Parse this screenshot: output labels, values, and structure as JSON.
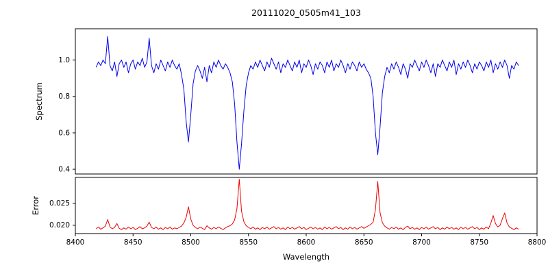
{
  "chart_data": {
    "type": "line",
    "title": "20111020_0505m41_103",
    "xlabel": "Wavelength",
    "xlim": [
      8400,
      8800
    ],
    "xticks": [
      8400,
      8450,
      8500,
      8550,
      8600,
      8650,
      8700,
      8750,
      8800
    ],
    "xtick_labels": [
      "8400",
      "8450",
      "8500",
      "8550",
      "8600",
      "8650",
      "8700",
      "8750",
      "8800"
    ],
    "grid": false,
    "legend": "none",
    "panels": [
      {
        "ylabel": "Spectrum",
        "ylim": [
          0.374,
          1.172
        ],
        "yticks": [
          0.4,
          0.6,
          0.8,
          1.0
        ],
        "ytick_labels": [
          "0.4",
          "0.6",
          "0.8",
          "1.0"
        ],
        "series": [
          {
            "name": "spectrum",
            "color": "#0000ee",
            "x_start": 8418,
            "x_step": 2,
            "values": [
              0.96,
              0.99,
              0.97,
              1.0,
              0.98,
              1.13,
              0.97,
              0.94,
              0.99,
              0.91,
              0.98,
              1.0,
              0.96,
              0.99,
              0.93,
              0.98,
              1.0,
              0.95,
              0.99,
              0.97,
              1.01,
              0.96,
              0.99,
              1.12,
              0.97,
              0.93,
              0.98,
              0.95,
              1.0,
              0.97,
              0.94,
              0.99,
              0.96,
              1.0,
              0.97,
              0.95,
              0.98,
              0.92,
              0.84,
              0.66,
              0.55,
              0.7,
              0.87,
              0.94,
              0.97,
              0.94,
              0.9,
              0.96,
              0.88,
              0.97,
              0.93,
              0.99,
              0.96,
              1.0,
              0.97,
              0.95,
              0.98,
              0.96,
              0.93,
              0.88,
              0.76,
              0.55,
              0.4,
              0.54,
              0.72,
              0.86,
              0.93,
              0.97,
              0.95,
              0.99,
              0.96,
              1.0,
              0.97,
              0.94,
              0.99,
              0.96,
              1.01,
              0.98,
              0.95,
              0.99,
              0.93,
              0.98,
              0.96,
              1.0,
              0.97,
              0.94,
              0.99,
              0.96,
              1.0,
              0.93,
              0.98,
              0.96,
              1.0,
              0.97,
              0.92,
              0.98,
              0.95,
              0.99,
              0.97,
              0.93,
              0.99,
              0.96,
              1.0,
              0.94,
              0.98,
              0.96,
              1.0,
              0.97,
              0.93,
              0.98,
              0.95,
              0.99,
              0.97,
              0.94,
              0.99,
              0.96,
              0.98,
              0.95,
              0.93,
              0.9,
              0.8,
              0.6,
              0.48,
              0.63,
              0.82,
              0.91,
              0.96,
              0.93,
              0.98,
              0.95,
              0.99,
              0.96,
              0.92,
              0.98,
              0.95,
              0.9,
              0.98,
              0.96,
              1.0,
              0.97,
              0.94,
              0.99,
              0.96,
              1.0,
              0.97,
              0.93,
              0.98,
              0.91,
              0.98,
              0.96,
              1.0,
              0.97,
              0.94,
              0.99,
              0.96,
              1.0,
              0.92,
              0.98,
              0.95,
              0.99,
              0.96,
              1.0,
              0.97,
              0.93,
              0.98,
              0.95,
              0.99,
              0.97,
              0.94,
              0.99,
              0.96,
              1.0,
              0.93,
              0.98,
              0.95,
              0.99,
              0.96,
              1.0,
              0.97,
              0.9,
              0.97,
              0.95,
              0.99,
              0.97
            ]
          }
        ]
      },
      {
        "ylabel": "Error",
        "ylim": [
          0.0181,
          0.0309
        ],
        "yticks": [
          0.02,
          0.025
        ],
        "ytick_labels": [
          "0.020",
          "0.025"
        ],
        "series": [
          {
            "name": "error",
            "color": "#ee0000",
            "x_start": 8418,
            "x_step": 2,
            "values": [
              0.0192,
              0.0196,
              0.0191,
              0.0194,
              0.0198,
              0.0213,
              0.0196,
              0.0192,
              0.0195,
              0.0204,
              0.0193,
              0.019,
              0.0194,
              0.0191,
              0.0196,
              0.0192,
              0.0195,
              0.019,
              0.0193,
              0.0197,
              0.0192,
              0.0194,
              0.0198,
              0.0207,
              0.0195,
              0.0192,
              0.0196,
              0.0191,
              0.0194,
              0.019,
              0.0195,
              0.0192,
              0.0196,
              0.0191,
              0.0194,
              0.0192,
              0.0195,
              0.0198,
              0.0205,
              0.0218,
              0.0242,
              0.0214,
              0.02,
              0.0195,
              0.0192,
              0.0196,
              0.0193,
              0.019,
              0.0199,
              0.0194,
              0.0191,
              0.0195,
              0.0192,
              0.0196,
              0.0193,
              0.019,
              0.0194,
              0.0197,
              0.0199,
              0.0203,
              0.0212,
              0.0238,
              0.0305,
              0.0232,
              0.0208,
              0.0199,
              0.0195,
              0.0192,
              0.0196,
              0.0191,
              0.0194,
              0.019,
              0.0195,
              0.0192,
              0.0196,
              0.0191,
              0.0194,
              0.0197,
              0.0192,
              0.0195,
              0.0191,
              0.0194,
              0.019,
              0.0196,
              0.0192,
              0.0195,
              0.0191,
              0.0194,
              0.0197,
              0.0192,
              0.0195,
              0.019,
              0.0193,
              0.0196,
              0.0192,
              0.0195,
              0.0191,
              0.0194,
              0.019,
              0.0196,
              0.0192,
              0.0195,
              0.0191,
              0.0194,
              0.0197,
              0.0192,
              0.0195,
              0.019,
              0.0194,
              0.0191,
              0.0196,
              0.0192,
              0.0195,
              0.0191,
              0.0194,
              0.0197,
              0.0193,
              0.0196,
              0.0199,
              0.0202,
              0.0207,
              0.0236,
              0.03,
              0.0229,
              0.0206,
              0.0198,
              0.0194,
              0.0191,
              0.0195,
              0.0192,
              0.0196,
              0.0191,
              0.0194,
              0.019,
              0.0195,
              0.0198,
              0.0192,
              0.0195,
              0.0191,
              0.0194,
              0.019,
              0.0195,
              0.0192,
              0.0196,
              0.0191,
              0.0194,
              0.0197,
              0.0192,
              0.0195,
              0.019,
              0.0194,
              0.0191,
              0.0196,
              0.0192,
              0.0195,
              0.0191,
              0.0194,
              0.019,
              0.0196,
              0.0192,
              0.0195,
              0.0191,
              0.0194,
              0.0197,
              0.0192,
              0.0195,
              0.019,
              0.0194,
              0.0191,
              0.0196,
              0.0192,
              0.0205,
              0.0222,
              0.0204,
              0.0196,
              0.02,
              0.0215,
              0.0228,
              0.0205,
              0.0196,
              0.0193,
              0.019,
              0.0194,
              0.0191
            ]
          }
        ]
      }
    ]
  }
}
